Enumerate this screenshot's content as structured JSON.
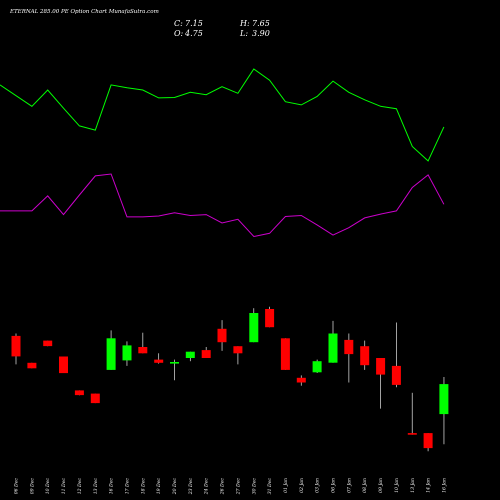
{
  "header": {
    "title": "ETERNAL 285.00  PE Option  Chart MunafaSutra.com",
    "close_label": "C:",
    "close_value": "7.15",
    "open_label": "O:",
    "open_value": "4.75",
    "high_label": "H:",
    "high_value": "7.65",
    "low_label": "L:",
    "low_value": "3.90"
  },
  "colors": {
    "background": "#000000",
    "up_candle": "#00ff00",
    "down_candle": "#ff0000",
    "green_line": "#00ff00",
    "magenta_line": "#cc00cc",
    "text": "#ffffff"
  },
  "chart_data": {
    "type": "candlestick",
    "dates": [
      "06 Dec",
      "09 Dec",
      "10 Dec",
      "11 Dec",
      "12 Dec",
      "13 Dec",
      "16 Dec",
      "17 Dec",
      "18 Dec",
      "19 Dec",
      "20 Dec",
      "23 Dec",
      "24 Dec",
      "26 Dec",
      "27 Dec",
      "30 Dec",
      "31 Dec",
      "01 Jan",
      "02 Jan",
      "03 Jan",
      "06 Jan",
      "07 Jan",
      "08 Jan",
      "09 Jan",
      "10 Jan",
      "13 Jan",
      "14 Jan",
      "16 Jan"
    ],
    "ohlc": [
      {
        "o": 19.6,
        "h": 19.9,
        "l": 16.0,
        "c": 17.0
      },
      {
        "o": 16.2,
        "h": 16.2,
        "l": 15.5,
        "c": 15.5
      },
      {
        "o": 19.0,
        "h": 19.0,
        "l": 18.3,
        "c": 18.3
      },
      {
        "o": 17.0,
        "h": 17.0,
        "l": 14.9,
        "c": 14.9
      },
      {
        "o": 12.7,
        "h": 12.7,
        "l": 12.1,
        "c": 12.1
      },
      {
        "o": 12.3,
        "h": 12.3,
        "l": 11.1,
        "c": 11.1
      },
      {
        "o": 15.3,
        "h": 20.3,
        "l": 15.3,
        "c": 19.3
      },
      {
        "o": 16.5,
        "h": 18.9,
        "l": 15.8,
        "c": 18.4
      },
      {
        "o": 18.2,
        "h": 20.0,
        "l": 17.4,
        "c": 17.4
      },
      {
        "o": 16.6,
        "h": 17.4,
        "l": 16.1,
        "c": 16.2
      },
      {
        "o": 16.1,
        "h": 16.6,
        "l": 14.0,
        "c": 16.3
      },
      {
        "o": 16.8,
        "h": 17.6,
        "l": 16.4,
        "c": 17.6
      },
      {
        "o": 17.8,
        "h": 18.2,
        "l": 16.8,
        "c": 16.8
      },
      {
        "o": 20.5,
        "h": 21.6,
        "l": 17.7,
        "c": 18.8
      },
      {
        "o": 18.3,
        "h": 18.3,
        "l": 16.0,
        "c": 17.4
      },
      {
        "o": 18.8,
        "h": 23.1,
        "l": 18.8,
        "c": 22.5
      },
      {
        "o": 23.0,
        "h": 23.3,
        "l": 20.7,
        "c": 20.7
      },
      {
        "o": 19.3,
        "h": 19.3,
        "l": 15.3,
        "c": 15.3
      },
      {
        "o": 14.3,
        "h": 14.6,
        "l": 13.3,
        "c": 13.7
      },
      {
        "o": 15.0,
        "h": 16.6,
        "l": 14.9,
        "c": 16.4
      },
      {
        "o": 16.2,
        "h": 21.5,
        "l": 16.2,
        "c": 19.9
      },
      {
        "o": 19.1,
        "h": 19.9,
        "l": 13.7,
        "c": 17.3
      },
      {
        "o": 18.3,
        "h": 19.0,
        "l": 15.3,
        "c": 15.9
      },
      {
        "o": 16.8,
        "h": 16.8,
        "l": 10.4,
        "c": 14.7
      },
      {
        "o": 15.8,
        "h": 21.3,
        "l": 13.1,
        "c": 13.4
      },
      {
        "o": 7.3,
        "h": 12.4,
        "l": 7.1,
        "c": 7.1
      },
      {
        "o": 7.3,
        "h": 7.3,
        "l": 5.0,
        "c": 5.4
      },
      {
        "o": 9.7,
        "h": 14.4,
        "l": 5.9,
        "c": 13.5
      }
    ],
    "price_range": [
      2,
      33
    ],
    "green_line": [
      38.6,
      34.0,
      37.5,
      33.6,
      29.8,
      28.9,
      38.6,
      38.0,
      37.5,
      35.8,
      35.9,
      37.0,
      36.5,
      38.2,
      36.8,
      42.0,
      39.6,
      35.0,
      34.3,
      36.1,
      39.4,
      37.0,
      35.4,
      34.0,
      33.5,
      25.4,
      22.3,
      29.6
    ],
    "magenta_line": [
      11.6,
      11.6,
      14.8,
      10.8,
      15.0,
      19.1,
      19.5,
      10.3,
      10.3,
      10.5,
      11.2,
      10.6,
      10.8,
      9.0,
      9.8,
      6.1,
      6.8,
      10.4,
      10.6,
      8.6,
      6.4,
      8.0,
      10.1,
      10.9,
      11.6,
      16.6,
      19.3,
      13.0
    ],
    "green_line_color": "#00ff00",
    "magenta_line_color": "#cc00cc"
  }
}
